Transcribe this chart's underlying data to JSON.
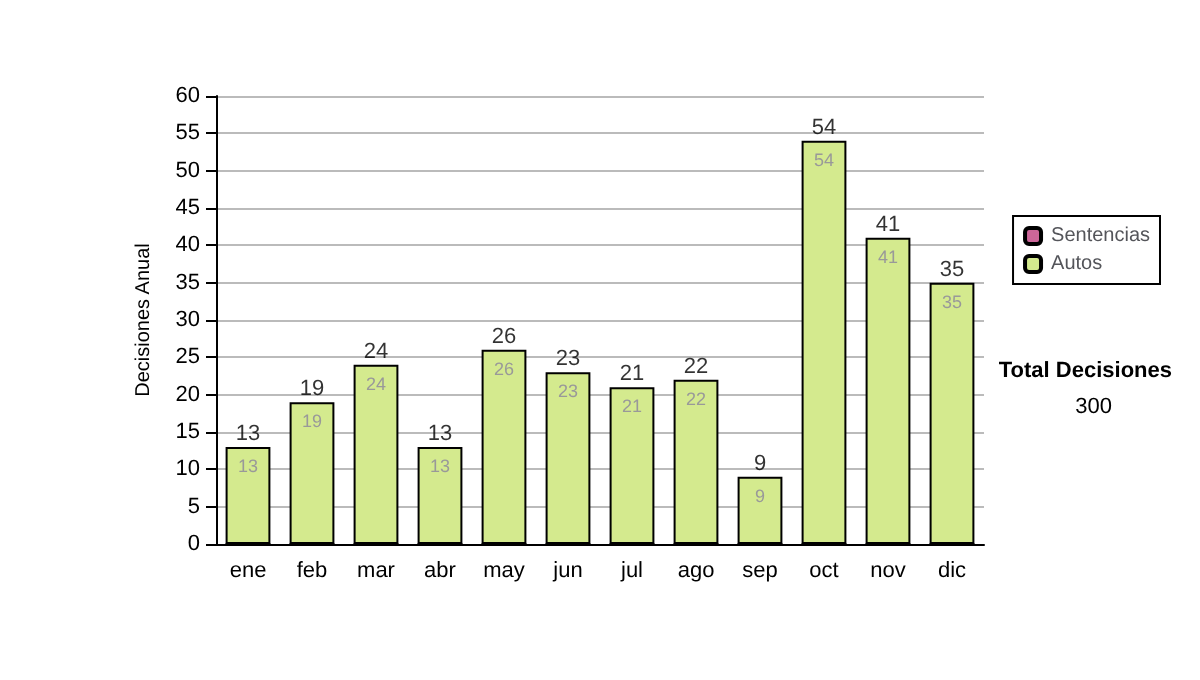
{
  "chart_data": {
    "type": "bar",
    "ylabel": "Decisiones Anual",
    "categories": [
      "ene",
      "feb",
      "mar",
      "abr",
      "may",
      "jun",
      "jul",
      "ago",
      "sep",
      "oct",
      "nov",
      "dic"
    ],
    "series": [
      {
        "name": "Sentencias",
        "color": "#cc6699",
        "values": [
          0,
          0,
          0,
          0,
          0,
          0,
          0,
          0,
          0,
          0,
          0,
          0
        ]
      },
      {
        "name": "Autos",
        "color": "#d4ea8e",
        "values": [
          13,
          19,
          24,
          13,
          26,
          23,
          21,
          22,
          9,
          54,
          41,
          35
        ],
        "value_labels": [
          "13",
          "19",
          "24",
          "13",
          "26",
          "23",
          "21",
          "22",
          "9",
          "54",
          "41",
          "35"
        ]
      }
    ],
    "stacked": true,
    "totals": [
      "13",
      "19",
      "24",
      "13",
      "26",
      "23",
      "21",
      "22",
      "9",
      "54",
      "41",
      "35"
    ],
    "ylim": [
      0,
      60
    ],
    "yticks": [
      0,
      5,
      10,
      15,
      20,
      25,
      30,
      35,
      40,
      45,
      50,
      55,
      60
    ],
    "grid": "y",
    "legend": "right",
    "annotations": [
      "Total Decisiones",
      "300"
    ]
  }
}
